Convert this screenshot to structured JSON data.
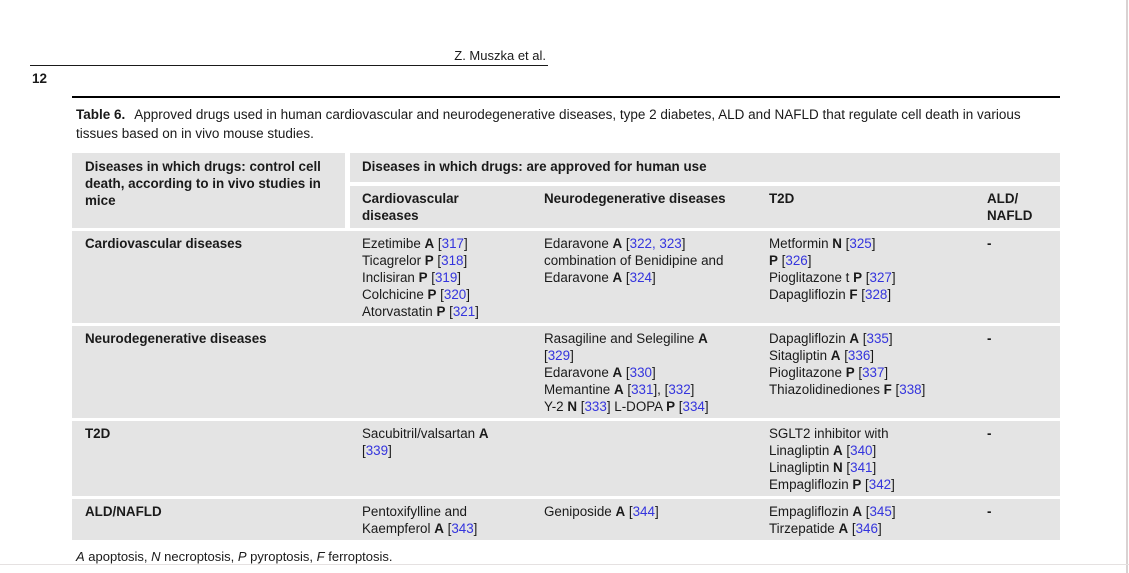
{
  "page": {
    "running_head": "Z. Muszka et al.",
    "page_number": "12"
  },
  "colors": {
    "row_bg": "#e4e4e4",
    "ref_blue": "#3434dd",
    "text": "#1a1a1a"
  },
  "table": {
    "caption_label": "Table 6.",
    "caption_text": "Approved drugs used in human cardiovascular and neurodegenerative diseases, type 2 diabetes, ALD and NAFLD that regulate cell death in various tissues based on in vivo mouse studies.",
    "row_header_column": "Diseases in which drugs: control cell death, according to in vivo studies in mice",
    "span_header": "Diseases in which drugs: are approved for human use",
    "sub_headers": [
      {
        "id": "cardiovascular",
        "lines": [
          "Cardiovascular",
          "diseases"
        ]
      },
      {
        "id": "neurodegenerative",
        "lines": [
          "Neurodegenerative diseases"
        ]
      },
      {
        "id": "t2d",
        "lines": [
          "T2D"
        ]
      },
      {
        "id": "ald-nafld",
        "lines": [
          "ALD/",
          "NAFLD"
        ]
      }
    ],
    "rows": [
      {
        "disease": "Cardiovascular diseases",
        "cardiovascular": [
          "Ezetimibe **A** [317]",
          "Ticagrelor **P** [318]",
          "Inclisiran **P** [319]",
          "Colchicine **P** [320]",
          "Atorvastatin **P** [321]"
        ],
        "neurodegenerative": [
          "Edaravone **A** [322, 323]",
          "combination of Benidipine and",
          "Edaravone **A** [324]"
        ],
        "t2d": [
          "Metformin **N** [325]",
          "**P** [326]",
          "Pioglitazone t **P** [327]",
          "Dapagliflozin **F** [328]"
        ],
        "ald_nafld": [
          "**-**"
        ]
      },
      {
        "disease": "Neurodegenerative diseases",
        "cardiovascular": [],
        "neurodegenerative": [
          "Rasagiline and Selegiline **A**",
          "[329]",
          "Edaravone **A** [330]",
          "Memantine **A** [331], [332]",
          "Y-2 **N** [333] L-DOPA **P** [334]"
        ],
        "t2d": [
          "Dapagliflozin **A** [335]",
          "Sitagliptin **A** [336]",
          "Pioglitazone **P** [337]",
          "Thiazolidinediones **F** [338]"
        ],
        "ald_nafld": [
          "**-**"
        ]
      },
      {
        "disease": "T2D",
        "cardiovascular": [
          "Sacubitril/valsartan **A**",
          "[339]"
        ],
        "neurodegenerative": [],
        "t2d": [
          "SGLT2 inhibitor with",
          "Linagliptin **A** [340]",
          "Linagliptin **N** [341]",
          "Empagliflozin **P** [342]"
        ],
        "ald_nafld": [
          "**-**"
        ]
      },
      {
        "disease": "ALD/NAFLD",
        "cardiovascular": [
          "Pentoxifylline and",
          "Kaempferol **A** [343]"
        ],
        "neurodegenerative": [
          "Geniposide **A** [344]"
        ],
        "t2d": [
          "Empagliflozin **A** [345]",
          "Tirzepatide **A** [346]"
        ],
        "ald_nafld": [
          "**-**"
        ]
      }
    ],
    "footnote": "*A* apoptosis, *N* necroptosis, *P* pyroptosis, *F* ferroptosis."
  }
}
